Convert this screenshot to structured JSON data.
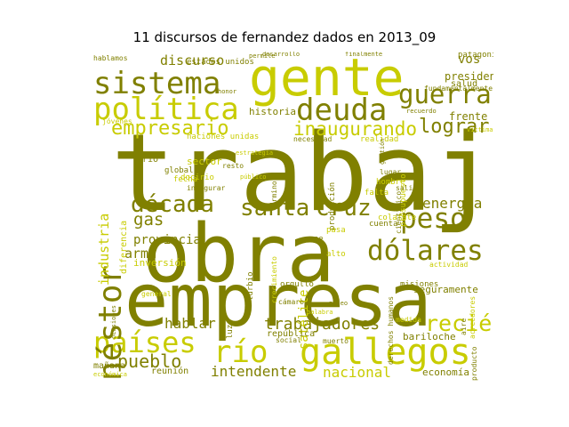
{
  "figure": {
    "title": "11 discursos de fernandez dados en 2013_09"
  },
  "palette": {
    "dark": "#808000",
    "light": "#c8cc00",
    "mid": "#a3a800",
    "pale": "#d6d94a"
  },
  "cloud": {
    "words": [
      {
        "text": "trabajo",
        "weight": 100,
        "tone": "dark",
        "rot": 0
      },
      {
        "text": "obra",
        "weight": 78,
        "tone": "dark",
        "rot": 0
      },
      {
        "text": "empresa",
        "weight": 72,
        "tone": "dark",
        "rot": 0
      },
      {
        "text": "gente",
        "weight": 52,
        "tone": "light",
        "rot": 0
      },
      {
        "text": "sistema",
        "weight": 30,
        "tone": "dark",
        "rot": 0
      },
      {
        "text": "política",
        "weight": 30,
        "tone": "light",
        "rot": 0
      },
      {
        "text": "deuda",
        "weight": 30,
        "tone": "dark",
        "rot": 0
      },
      {
        "text": "guerra",
        "weight": 25,
        "tone": "dark",
        "rot": 0
      },
      {
        "text": "gallegos",
        "weight": 34,
        "tone": "light",
        "rot": 0
      },
      {
        "text": "río",
        "weight": 30,
        "tone": "light",
        "rot": 0
      },
      {
        "text": "países",
        "weight": 28,
        "tone": "light",
        "rot": 0
      },
      {
        "text": "néstor",
        "weight": 30,
        "tone": "dark",
        "rot": -90
      },
      {
        "text": "dólares",
        "weight": 27,
        "tone": "dark",
        "rot": 0
      },
      {
        "text": "peso",
        "weight": 27,
        "tone": "dark",
        "rot": 0
      },
      {
        "text": "santa",
        "weight": 23,
        "tone": "dark",
        "rot": 0
      },
      {
        "text": "cruz",
        "weight": 23,
        "tone": "dark",
        "rot": 0
      },
      {
        "text": "década",
        "weight": 22,
        "tone": "dark",
        "rot": 0
      },
      {
        "text": "recién",
        "weight": 22,
        "tone": "light",
        "rot": 0
      },
      {
        "text": "empresario",
        "weight": 20,
        "tone": "light",
        "rot": 0
      },
      {
        "text": "inaugurando",
        "weight": 19,
        "tone": "light",
        "rot": 0
      },
      {
        "text": "lograr",
        "weight": 19,
        "tone": "dark",
        "rot": 0
      },
      {
        "text": "pueblo",
        "weight": 18,
        "tone": "dark",
        "rot": 0
      },
      {
        "text": "trabajadores",
        "weight": 16,
        "tone": "dark",
        "rot": 0
      },
      {
        "text": "gas",
        "weight": 17,
        "tone": "dark",
        "rot": 0
      },
      {
        "text": "energía",
        "weight": 14,
        "tone": "dark",
        "rot": 0
      },
      {
        "text": "hablar",
        "weight": 14,
        "tone": "dark",
        "rot": 0
      },
      {
        "text": "intendente",
        "weight": 14,
        "tone": "dark",
        "rot": 0
      },
      {
        "text": "nacional",
        "weight": 14,
        "tone": "light",
        "rot": 0
      },
      {
        "text": "industria",
        "weight": 13,
        "tone": "light",
        "rot": -90
      },
      {
        "text": "provincia",
        "weight": 12,
        "tone": "dark",
        "rot": 0
      },
      {
        "text": "arma",
        "weight": 13,
        "tone": "dark",
        "rot": 0
      },
      {
        "text": "discurso",
        "weight": 13,
        "tone": "dark",
        "rot": 0
      },
      {
        "text": "presidenta",
        "weight": 11,
        "tone": "dark",
        "rot": 0
      },
      {
        "text": "vos",
        "weight": 12,
        "tone": "dark",
        "rot": 0
      },
      {
        "text": "frente",
        "weight": 11,
        "tone": "dark",
        "rot": 0
      },
      {
        "text": "satélite",
        "weight": 12,
        "tone": "light",
        "rot": -90
      },
      {
        "text": "seguramente",
        "weight": 10,
        "tone": "dark",
        "rot": 0
      },
      {
        "text": "inversión",
        "weight": 10,
        "tone": "light",
        "rot": 0
      },
      {
        "text": "historia",
        "weight": 10,
        "tone": "dark",
        "rot": 0
      },
      {
        "text": "sector",
        "weight": 10,
        "tone": "light",
        "rot": 0
      },
      {
        "text": "economía",
        "weight": 10,
        "tone": "dark",
        "rot": 0
      },
      {
        "text": "bariloche",
        "weight": 10,
        "tone": "dark",
        "rot": 0
      },
      {
        "text": "república",
        "weight": 9,
        "tone": "dark",
        "rot": 0
      },
      {
        "text": "diferencia",
        "weight": 9,
        "tone": "light",
        "rot": -90
      },
      {
        "text": "mañana",
        "weight": 9,
        "tone": "dark",
        "rot": 0
      },
      {
        "text": "reunión",
        "weight": 9,
        "tone": "dark",
        "rot": 0
      },
      {
        "text": "salud",
        "weight": 9,
        "tone": "dark",
        "rot": 0
      },
      {
        "text": "patagonia",
        "weight": 8,
        "tone": "dark",
        "rot": 0
      },
      {
        "text": "estados unidos",
        "weight": 8,
        "tone": "dark",
        "rot": 0
      },
      {
        "text": "naciones unidas",
        "weight": 8,
        "tone": "light",
        "rot": 0
      },
      {
        "text": "fundamentalmente",
        "weight": 7,
        "tone": "dark",
        "rot": 0
      },
      {
        "text": "jóvenes",
        "weight": 7,
        "tone": "light",
        "rot": 0
      },
      {
        "text": "producción",
        "weight": 8,
        "tone": "dark",
        "rot": -90
      },
      {
        "text": "presupuesto",
        "weight": 8,
        "tone": "light",
        "rot": -90
      },
      {
        "text": "realidad",
        "weight": 8,
        "tone": "light",
        "rot": 0
      },
      {
        "text": "necesidad",
        "weight": 7,
        "tone": "dark",
        "rot": 0
      },
      {
        "text": "global",
        "weight": 8,
        "tone": "dark",
        "rot": 0
      },
      {
        "text": "fecha",
        "weight": 8,
        "tone": "light",
        "rot": 0
      },
      {
        "text": "cuenta",
        "weight": 8,
        "tone": "dark",
        "rot": 0
      },
      {
        "text": "pasa",
        "weight": 8,
        "tone": "light",
        "rot": 0
      },
      {
        "text": "pepe",
        "weight": 8,
        "tone": "dark",
        "rot": 0
      },
      {
        "text": "alto",
        "weight": 8,
        "tone": "light",
        "rot": 0
      },
      {
        "text": "colafate",
        "weight": 8,
        "tone": "light",
        "rot": 0
      },
      {
        "text": "falta",
        "weight": 8,
        "tone": "light",
        "rot": 0
      },
      {
        "text": "hombre",
        "weight": 8,
        "tone": "light",
        "rot": 0
      },
      {
        "text": "misiones",
        "weight": 8,
        "tone": "dark",
        "rot": 0
      },
      {
        "text": "actividad",
        "weight": 7,
        "tone": "light",
        "rot": 0
      },
      {
        "text": "orgullo",
        "weight": 8,
        "tone": "dark",
        "rot": 0
      },
      {
        "text": "cámaro",
        "weight": 7,
        "tone": "dark",
        "rot": 0
      },
      {
        "text": "social",
        "weight": 7,
        "tone": "dark",
        "rot": 0
      },
      {
        "text": "muerto",
        "weight": 7,
        "tone": "dark",
        "rot": 0
      },
      {
        "text": "medida",
        "weight": 7,
        "tone": "light",
        "rot": 0
      },
      {
        "text": "derechos humanos",
        "weight": 7,
        "tone": "dark",
        "rot": -90
      },
      {
        "text": "aire",
        "weight": 7,
        "tone": "dark",
        "rot": -90
      },
      {
        "text": "acreedores",
        "weight": 7,
        "tone": "light",
        "rot": -90
      },
      {
        "text": "producto",
        "weight": 7,
        "tone": "dark",
        "rot": -90
      },
      {
        "text": "córdoba",
        "weight": 6,
        "tone": "light",
        "rot": 0
      },
      {
        "text": "económica",
        "weight": 6,
        "tone": "light",
        "rot": 0
      },
      {
        "text": "hablamos",
        "weight": 7,
        "tone": "dark",
        "rot": 0
      },
      {
        "text": "permite",
        "weight": 6,
        "tone": "dark",
        "rot": 0
      },
      {
        "text": "desarrollo",
        "weight": 6,
        "tone": "dark",
        "rot": 0
      },
      {
        "text": "finalmente",
        "weight": 6,
        "tone": "dark",
        "rot": 0
      },
      {
        "text": "honor",
        "weight": 6,
        "tone": "dark",
        "rot": 0
      },
      {
        "text": "recuerdo",
        "weight": 6,
        "tone": "dark",
        "rot": 0
      },
      {
        "text": "término",
        "weight": 7,
        "tone": "dark",
        "rot": -90
      },
      {
        "text": "crecimiento",
        "weight": 7,
        "tone": "light",
        "rot": -90
      },
      {
        "text": "general",
        "weight": 7,
        "tone": "light",
        "rot": 0
      },
      {
        "text": "ocasiones",
        "weight": 6,
        "tone": "dark",
        "rot": -90
      },
      {
        "text": "palabra",
        "weight": 6,
        "tone": "light",
        "rot": 0
      },
      {
        "text": "paseo",
        "weight": 6,
        "tone": "dark",
        "rot": 0
      },
      {
        "text": "docirio",
        "weight": 8,
        "tone": "light",
        "rot": 0
      },
      {
        "text": "inaugurar",
        "weight": 7,
        "tone": "dark",
        "rot": 0
      },
      {
        "text": "resto",
        "weight": 7,
        "tone": "dark",
        "rot": 0
      },
      {
        "text": "turbio",
        "weight": 8,
        "tone": "dark",
        "rot": -90
      },
      {
        "text": "luz",
        "weight": 8,
        "tone": "dark",
        "rot": -90
      },
      {
        "text": "lugar",
        "weight": 7,
        "tone": "dark",
        "rot": 0
      },
      {
        "text": "salir",
        "weight": 7,
        "tone": "dark",
        "rot": 0
      },
      {
        "text": "científico",
        "weight": 7,
        "tone": "dark",
        "rot": -90
      },
      {
        "text": "víctima",
        "weight": 6,
        "tone": "light",
        "rot": 0
      },
      {
        "text": "gestión",
        "weight": 6,
        "tone": "dark",
        "rot": -90
      },
      {
        "text": "público",
        "weight": 6,
        "tone": "light",
        "rot": 0
      },
      {
        "text": "estrategia",
        "weight": 6,
        "tone": "light",
        "rot": 0
      },
      {
        "text": "rio",
        "weight": 8,
        "tone": "dark",
        "rot": 0
      }
    ]
  }
}
